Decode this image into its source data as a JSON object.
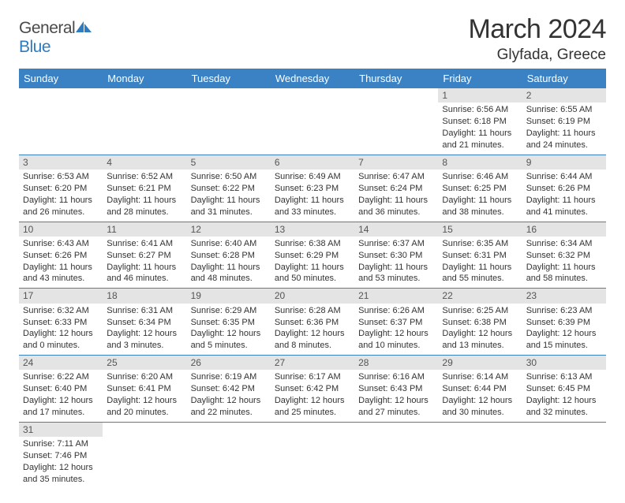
{
  "brand": {
    "part1": "General",
    "part2": "Blue"
  },
  "title": "March 2024",
  "location": "Glyfada, Greece",
  "colors": {
    "header_bg": "#3a82c4",
    "header_text": "#ffffff",
    "daynum_bg": "#e4e4e4",
    "rule": "#3a82c4",
    "brand_accent": "#2f7bbf",
    "text": "#333333"
  },
  "typography": {
    "title_fontsize": 34,
    "location_fontsize": 19,
    "header_fontsize": 13,
    "daynum_fontsize": 12,
    "body_fontsize": 11
  },
  "weekdays": [
    "Sunday",
    "Monday",
    "Tuesday",
    "Wednesday",
    "Thursday",
    "Friday",
    "Saturday"
  ],
  "weeks": [
    [
      null,
      null,
      null,
      null,
      null,
      {
        "d": "1",
        "sr": "Sunrise: 6:56 AM",
        "ss": "Sunset: 6:18 PM",
        "dl1": "Daylight: 11 hours",
        "dl2": "and 21 minutes."
      },
      {
        "d": "2",
        "sr": "Sunrise: 6:55 AM",
        "ss": "Sunset: 6:19 PM",
        "dl1": "Daylight: 11 hours",
        "dl2": "and 24 minutes."
      }
    ],
    [
      {
        "d": "3",
        "sr": "Sunrise: 6:53 AM",
        "ss": "Sunset: 6:20 PM",
        "dl1": "Daylight: 11 hours",
        "dl2": "and 26 minutes."
      },
      {
        "d": "4",
        "sr": "Sunrise: 6:52 AM",
        "ss": "Sunset: 6:21 PM",
        "dl1": "Daylight: 11 hours",
        "dl2": "and 28 minutes."
      },
      {
        "d": "5",
        "sr": "Sunrise: 6:50 AM",
        "ss": "Sunset: 6:22 PM",
        "dl1": "Daylight: 11 hours",
        "dl2": "and 31 minutes."
      },
      {
        "d": "6",
        "sr": "Sunrise: 6:49 AM",
        "ss": "Sunset: 6:23 PM",
        "dl1": "Daylight: 11 hours",
        "dl2": "and 33 minutes."
      },
      {
        "d": "7",
        "sr": "Sunrise: 6:47 AM",
        "ss": "Sunset: 6:24 PM",
        "dl1": "Daylight: 11 hours",
        "dl2": "and 36 minutes."
      },
      {
        "d": "8",
        "sr": "Sunrise: 6:46 AM",
        "ss": "Sunset: 6:25 PM",
        "dl1": "Daylight: 11 hours",
        "dl2": "and 38 minutes."
      },
      {
        "d": "9",
        "sr": "Sunrise: 6:44 AM",
        "ss": "Sunset: 6:26 PM",
        "dl1": "Daylight: 11 hours",
        "dl2": "and 41 minutes."
      }
    ],
    [
      {
        "d": "10",
        "sr": "Sunrise: 6:43 AM",
        "ss": "Sunset: 6:26 PM",
        "dl1": "Daylight: 11 hours",
        "dl2": "and 43 minutes."
      },
      {
        "d": "11",
        "sr": "Sunrise: 6:41 AM",
        "ss": "Sunset: 6:27 PM",
        "dl1": "Daylight: 11 hours",
        "dl2": "and 46 minutes."
      },
      {
        "d": "12",
        "sr": "Sunrise: 6:40 AM",
        "ss": "Sunset: 6:28 PM",
        "dl1": "Daylight: 11 hours",
        "dl2": "and 48 minutes."
      },
      {
        "d": "13",
        "sr": "Sunrise: 6:38 AM",
        "ss": "Sunset: 6:29 PM",
        "dl1": "Daylight: 11 hours",
        "dl2": "and 50 minutes."
      },
      {
        "d": "14",
        "sr": "Sunrise: 6:37 AM",
        "ss": "Sunset: 6:30 PM",
        "dl1": "Daylight: 11 hours",
        "dl2": "and 53 minutes."
      },
      {
        "d": "15",
        "sr": "Sunrise: 6:35 AM",
        "ss": "Sunset: 6:31 PM",
        "dl1": "Daylight: 11 hours",
        "dl2": "and 55 minutes."
      },
      {
        "d": "16",
        "sr": "Sunrise: 6:34 AM",
        "ss": "Sunset: 6:32 PM",
        "dl1": "Daylight: 11 hours",
        "dl2": "and 58 minutes."
      }
    ],
    [
      {
        "d": "17",
        "sr": "Sunrise: 6:32 AM",
        "ss": "Sunset: 6:33 PM",
        "dl1": "Daylight: 12 hours",
        "dl2": "and 0 minutes."
      },
      {
        "d": "18",
        "sr": "Sunrise: 6:31 AM",
        "ss": "Sunset: 6:34 PM",
        "dl1": "Daylight: 12 hours",
        "dl2": "and 3 minutes."
      },
      {
        "d": "19",
        "sr": "Sunrise: 6:29 AM",
        "ss": "Sunset: 6:35 PM",
        "dl1": "Daylight: 12 hours",
        "dl2": "and 5 minutes."
      },
      {
        "d": "20",
        "sr": "Sunrise: 6:28 AM",
        "ss": "Sunset: 6:36 PM",
        "dl1": "Daylight: 12 hours",
        "dl2": "and 8 minutes."
      },
      {
        "d": "21",
        "sr": "Sunrise: 6:26 AM",
        "ss": "Sunset: 6:37 PM",
        "dl1": "Daylight: 12 hours",
        "dl2": "and 10 minutes."
      },
      {
        "d": "22",
        "sr": "Sunrise: 6:25 AM",
        "ss": "Sunset: 6:38 PM",
        "dl1": "Daylight: 12 hours",
        "dl2": "and 13 minutes."
      },
      {
        "d": "23",
        "sr": "Sunrise: 6:23 AM",
        "ss": "Sunset: 6:39 PM",
        "dl1": "Daylight: 12 hours",
        "dl2": "and 15 minutes."
      }
    ],
    [
      {
        "d": "24",
        "sr": "Sunrise: 6:22 AM",
        "ss": "Sunset: 6:40 PM",
        "dl1": "Daylight: 12 hours",
        "dl2": "and 17 minutes."
      },
      {
        "d": "25",
        "sr": "Sunrise: 6:20 AM",
        "ss": "Sunset: 6:41 PM",
        "dl1": "Daylight: 12 hours",
        "dl2": "and 20 minutes."
      },
      {
        "d": "26",
        "sr": "Sunrise: 6:19 AM",
        "ss": "Sunset: 6:42 PM",
        "dl1": "Daylight: 12 hours",
        "dl2": "and 22 minutes."
      },
      {
        "d": "27",
        "sr": "Sunrise: 6:17 AM",
        "ss": "Sunset: 6:42 PM",
        "dl1": "Daylight: 12 hours",
        "dl2": "and 25 minutes."
      },
      {
        "d": "28",
        "sr": "Sunrise: 6:16 AM",
        "ss": "Sunset: 6:43 PM",
        "dl1": "Daylight: 12 hours",
        "dl2": "and 27 minutes."
      },
      {
        "d": "29",
        "sr": "Sunrise: 6:14 AM",
        "ss": "Sunset: 6:44 PM",
        "dl1": "Daylight: 12 hours",
        "dl2": "and 30 minutes."
      },
      {
        "d": "30",
        "sr": "Sunrise: 6:13 AM",
        "ss": "Sunset: 6:45 PM",
        "dl1": "Daylight: 12 hours",
        "dl2": "and 32 minutes."
      }
    ],
    [
      {
        "d": "31",
        "sr": "Sunrise: 7:11 AM",
        "ss": "Sunset: 7:46 PM",
        "dl1": "Daylight: 12 hours",
        "dl2": "and 35 minutes."
      },
      null,
      null,
      null,
      null,
      null,
      null
    ]
  ]
}
